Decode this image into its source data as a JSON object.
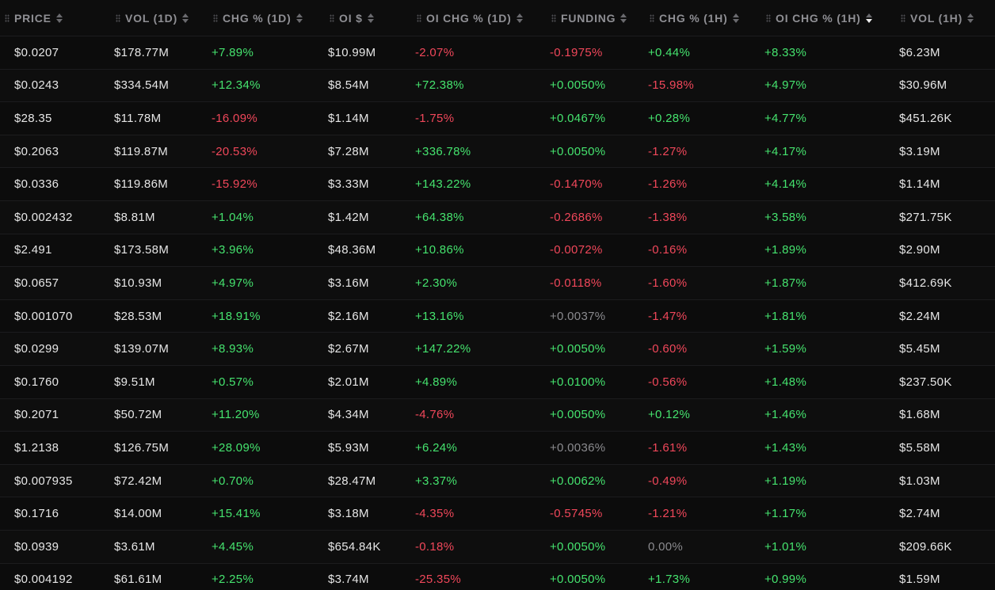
{
  "colors": {
    "background": "#0b0b0b",
    "positive": "#45e36e",
    "negative": "#f0475a",
    "neutral": "#8a8a8e",
    "header_text": "#8f8f94",
    "cell_text": "#e6e6e6"
  },
  "table": {
    "sorted_column": "oi_chg_1h",
    "sort_direction": "desc",
    "headers": [
      {
        "key": "price",
        "label": "PRICE"
      },
      {
        "key": "vol_1d",
        "label": "VOL (1D)"
      },
      {
        "key": "chg_1d",
        "label": "CHG % (1D)"
      },
      {
        "key": "oi",
        "label": "OI $"
      },
      {
        "key": "oi_chg_1d",
        "label": "OI CHG % (1D)"
      },
      {
        "key": "funding",
        "label": "FUNDING"
      },
      {
        "key": "chg_1h",
        "label": "CHG % (1H)"
      },
      {
        "key": "oi_chg_1h",
        "label": "OI CHG % (1H)"
      },
      {
        "key": "vol_1h",
        "label": "VOL (1H)"
      }
    ],
    "rows": [
      {
        "price": "$0.0207",
        "vol_1d": "$178.77M",
        "chg_1d": "+7.89%",
        "oi": "$10.99M",
        "oi_chg_1d": "-2.07%",
        "funding": "-0.1975%",
        "chg_1h": "+0.44%",
        "oi_chg_1h": "+8.33%",
        "vol_1h": "$6.23M"
      },
      {
        "price": "$0.0243",
        "vol_1d": "$334.54M",
        "chg_1d": "+12.34%",
        "oi": "$8.54M",
        "oi_chg_1d": "+72.38%",
        "funding": "+0.0050%",
        "chg_1h": "-15.98%",
        "oi_chg_1h": "+4.97%",
        "vol_1h": "$30.96M"
      },
      {
        "price": "$28.35",
        "vol_1d": "$11.78M",
        "chg_1d": "-16.09%",
        "oi": "$1.14M",
        "oi_chg_1d": "-1.75%",
        "funding": "+0.0467%",
        "chg_1h": "+0.28%",
        "oi_chg_1h": "+4.77%",
        "vol_1h": "$451.26K"
      },
      {
        "price": "$0.2063",
        "vol_1d": "$119.87M",
        "chg_1d": "-20.53%",
        "oi": "$7.28M",
        "oi_chg_1d": "+336.78%",
        "funding": "+0.0050%",
        "chg_1h": "-1.27%",
        "oi_chg_1h": "+4.17%",
        "vol_1h": "$3.19M"
      },
      {
        "price": "$0.0336",
        "vol_1d": "$119.86M",
        "chg_1d": "-15.92%",
        "oi": "$3.33M",
        "oi_chg_1d": "+143.22%",
        "funding": "-0.1470%",
        "chg_1h": "-1.26%",
        "oi_chg_1h": "+4.14%",
        "vol_1h": "$1.14M"
      },
      {
        "price": "$0.002432",
        "vol_1d": "$8.81M",
        "chg_1d": "+1.04%",
        "oi": "$1.42M",
        "oi_chg_1d": "+64.38%",
        "funding": "-0.2686%",
        "chg_1h": "-1.38%",
        "oi_chg_1h": "+3.58%",
        "vol_1h": "$271.75K"
      },
      {
        "price": "$2.491",
        "vol_1d": "$173.58M",
        "chg_1d": "+3.96%",
        "oi": "$48.36M",
        "oi_chg_1d": "+10.86%",
        "funding": "-0.0072%",
        "chg_1h": "-0.16%",
        "oi_chg_1h": "+1.89%",
        "vol_1h": "$2.90M"
      },
      {
        "price": "$0.0657",
        "vol_1d": "$10.93M",
        "chg_1d": "+4.97%",
        "oi": "$3.16M",
        "oi_chg_1d": "+2.30%",
        "funding": "-0.0118%",
        "chg_1h": "-1.60%",
        "oi_chg_1h": "+1.87%",
        "vol_1h": "$412.69K"
      },
      {
        "price": "$0.001070",
        "vol_1d": "$28.53M",
        "chg_1d": "+18.91%",
        "oi": "$2.16M",
        "oi_chg_1d": "+13.16%",
        "funding": "+0.0037%",
        "chg_1h": "-1.47%",
        "oi_chg_1h": "+1.81%",
        "vol_1h": "$2.24M"
      },
      {
        "price": "$0.0299",
        "vol_1d": "$139.07M",
        "chg_1d": "+8.93%",
        "oi": "$2.67M",
        "oi_chg_1d": "+147.22%",
        "funding": "+0.0050%",
        "chg_1h": "-0.60%",
        "oi_chg_1h": "+1.59%",
        "vol_1h": "$5.45M"
      },
      {
        "price": "$0.1760",
        "vol_1d": "$9.51M",
        "chg_1d": "+0.57%",
        "oi": "$2.01M",
        "oi_chg_1d": "+4.89%",
        "funding": "+0.0100%",
        "chg_1h": "-0.56%",
        "oi_chg_1h": "+1.48%",
        "vol_1h": "$237.50K"
      },
      {
        "price": "$0.2071",
        "vol_1d": "$50.72M",
        "chg_1d": "+11.20%",
        "oi": "$4.34M",
        "oi_chg_1d": "-4.76%",
        "funding": "+0.0050%",
        "chg_1h": "+0.12%",
        "oi_chg_1h": "+1.46%",
        "vol_1h": "$1.68M"
      },
      {
        "price": "$1.2138",
        "vol_1d": "$126.75M",
        "chg_1d": "+28.09%",
        "oi": "$5.93M",
        "oi_chg_1d": "+6.24%",
        "funding": "+0.0036%",
        "chg_1h": "-1.61%",
        "oi_chg_1h": "+1.43%",
        "vol_1h": "$5.58M"
      },
      {
        "price": "$0.007935",
        "vol_1d": "$72.42M",
        "chg_1d": "+0.70%",
        "oi": "$28.47M",
        "oi_chg_1d": "+3.37%",
        "funding": "+0.0062%",
        "chg_1h": "-0.49%",
        "oi_chg_1h": "+1.19%",
        "vol_1h": "$1.03M"
      },
      {
        "price": "$0.1716",
        "vol_1d": "$14.00M",
        "chg_1d": "+15.41%",
        "oi": "$3.18M",
        "oi_chg_1d": "-4.35%",
        "funding": "-0.5745%",
        "chg_1h": "-1.21%",
        "oi_chg_1h": "+1.17%",
        "vol_1h": "$2.74M"
      },
      {
        "price": "$0.0939",
        "vol_1d": "$3.61M",
        "chg_1d": "+4.45%",
        "oi": "$654.84K",
        "oi_chg_1d": "-0.18%",
        "funding": "+0.0050%",
        "chg_1h": "0.00%",
        "oi_chg_1h": "+1.01%",
        "vol_1h": "$209.66K"
      },
      {
        "price": "$0.004192",
        "vol_1d": "$61.61M",
        "chg_1d": "+2.25%",
        "oi": "$3.74M",
        "oi_chg_1d": "-25.35%",
        "funding": "+0.0050%",
        "chg_1h": "+1.73%",
        "oi_chg_1h": "+0.99%",
        "vol_1h": "$1.59M"
      }
    ],
    "neutral_cells": [
      {
        "row": 8,
        "key": "funding"
      },
      {
        "row": 12,
        "key": "funding"
      },
      {
        "row": 15,
        "key": "chg_1h"
      }
    ]
  }
}
